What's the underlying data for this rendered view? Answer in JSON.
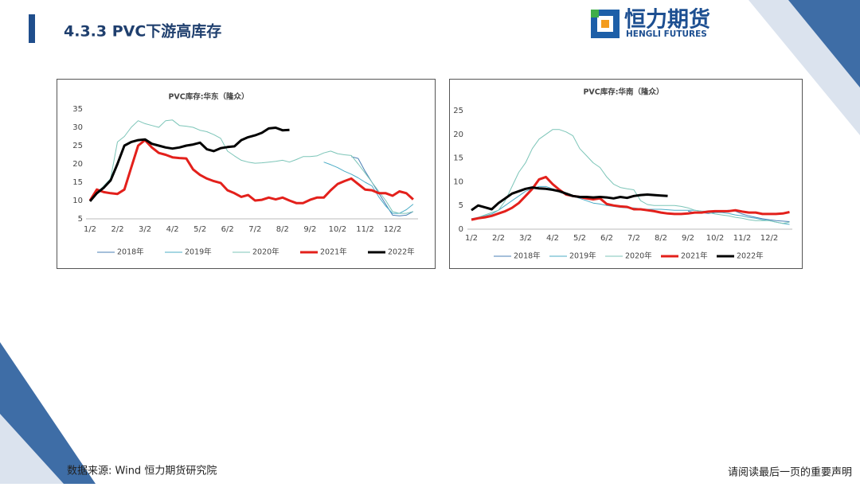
{
  "header": {
    "title": "4.3.3 PVC下游高库存"
  },
  "logo": {
    "name": "恒力期货",
    "subtitle": "HENGLI FUTURES"
  },
  "footer": {
    "source": "数据来源: Wind  恒力期货研究院",
    "disclaimer": "请阅读最后一页的重要声明"
  },
  "chart_data": [
    {
      "type": "line",
      "title": "PVC库存:华东（隆众）",
      "categories": [
        "1/2",
        null,
        null,
        null,
        "2/2",
        null,
        null,
        null,
        "3/2",
        null,
        null,
        null,
        "4/2",
        null,
        null,
        null,
        "5/2",
        null,
        null,
        null,
        "6/2",
        null,
        null,
        null,
        "7/2",
        null,
        null,
        null,
        "8/2",
        null,
        null,
        null,
        "9/2",
        null,
        null,
        null,
        "10/2",
        null,
        null,
        null,
        "11/2",
        null,
        null,
        null,
        "12/2",
        null,
        null,
        null
      ],
      "ylim": [
        5,
        35
      ],
      "yticks": [
        5,
        10,
        15,
        20,
        25,
        30,
        35
      ],
      "grid": false,
      "legend": "bottom",
      "series": [
        {
          "name": "2018年",
          "color": "#4a7fb5",
          "width": 1,
          "values": [
            null,
            null,
            null,
            null,
            null,
            null,
            null,
            null,
            null,
            null,
            null,
            null,
            null,
            null,
            null,
            null,
            null,
            null,
            null,
            null,
            null,
            null,
            null,
            null,
            null,
            null,
            null,
            null,
            null,
            null,
            null,
            null,
            null,
            null,
            null,
            null,
            null,
            null,
            22,
            21.5,
            18,
            15,
            12,
            9,
            6,
            5.8,
            6,
            7
          ]
        },
        {
          "name": "2019年",
          "color": "#4bacc6",
          "width": 1,
          "values": [
            null,
            null,
            null,
            null,
            null,
            null,
            null,
            null,
            null,
            null,
            null,
            null,
            null,
            null,
            null,
            null,
            null,
            null,
            null,
            null,
            null,
            null,
            null,
            null,
            null,
            null,
            null,
            null,
            null,
            null,
            null,
            null,
            null,
            null,
            20.5,
            19.8,
            19,
            18,
            17.2,
            16.2,
            15,
            14,
            11,
            8.5,
            6.5,
            6.5,
            7.5,
            9
          ]
        },
        {
          "name": "2020年",
          "color": "#7cc5b8",
          "width": 1,
          "values": [
            10,
            12,
            14,
            16,
            26,
            27.5,
            30,
            31.8,
            31,
            30.5,
            30,
            31.8,
            32,
            30.5,
            30.3,
            30,
            29.2,
            28.8,
            28,
            27,
            23.5,
            22.2,
            21,
            20.5,
            20.2,
            20.3,
            20.5,
            20.7,
            21,
            20.5,
            21.2,
            22,
            22,
            22.2,
            23,
            23.5,
            22.8,
            22.5,
            22.3,
            20,
            17.5,
            15,
            12.5,
            10,
            7,
            6.5,
            6.5,
            7
          ]
        },
        {
          "name": "2021年",
          "color": "#e3201b",
          "width": 3,
          "values": [
            10,
            13,
            12.3,
            12,
            11.8,
            13,
            19,
            25,
            26.5,
            24.5,
            23,
            22.5,
            21.8,
            21.6,
            21.5,
            18.5,
            17,
            16,
            15.3,
            14.8,
            12.8,
            12,
            11,
            11.5,
            10,
            10.2,
            10.8,
            10.3,
            10.8,
            10,
            9.3,
            9.3,
            10.2,
            10.8,
            10.8,
            12.8,
            14.5,
            15.3,
            16,
            14.5,
            13,
            12.8,
            12,
            12,
            11.3,
            12.5,
            12,
            10.3
          ]
        },
        {
          "name": "2022年",
          "color": "#000000",
          "width": 3,
          "values": [
            9.8,
            12,
            13.5,
            15.5,
            20,
            25,
            26,
            26.5,
            26.7,
            25.5,
            25,
            24.5,
            24.2,
            24.5,
            25,
            25.3,
            25.8,
            24,
            23.5,
            24.3,
            24.6,
            24.8,
            26.5,
            27.3,
            27.8,
            28.5,
            29.7,
            29.9,
            29.2,
            29.3,
            null,
            null,
            null,
            null,
            null,
            null,
            null,
            null,
            null,
            null,
            null,
            null,
            null,
            null,
            null,
            null,
            null,
            null
          ]
        }
      ]
    },
    {
      "type": "line",
      "title": "PVC库存:华南（隆众）",
      "categories": [
        "1/2",
        null,
        null,
        null,
        "2/2",
        null,
        null,
        null,
        "3/2",
        null,
        null,
        null,
        "4/2",
        null,
        null,
        null,
        "5/2",
        null,
        null,
        null,
        "6/2",
        null,
        null,
        null,
        "7/2",
        null,
        null,
        null,
        "8/2",
        null,
        null,
        null,
        "9/2",
        null,
        null,
        null,
        "10/2",
        null,
        null,
        null,
        "11/2",
        null,
        null,
        null,
        "12/2",
        null,
        null,
        null
      ],
      "ylim": [
        0,
        25
      ],
      "yticks": [
        0,
        5,
        10,
        15,
        20,
        25
      ],
      "grid": false,
      "legend": "bottom",
      "series": [
        {
          "name": "2018年",
          "color": "#4a7fb5",
          "width": 1,
          "values": [
            null,
            null,
            null,
            null,
            null,
            null,
            null,
            null,
            null,
            null,
            null,
            null,
            null,
            null,
            null,
            null,
            null,
            null,
            null,
            null,
            null,
            null,
            null,
            null,
            null,
            null,
            null,
            null,
            null,
            null,
            null,
            null,
            3.8,
            3.5,
            3.5,
            3.3,
            3.5,
            3.8,
            4,
            3.8,
            3.2,
            2.8,
            2.5,
            2.2,
            2,
            1.8,
            1.7,
            1.6
          ]
        },
        {
          "name": "2019年",
          "color": "#4bacc6",
          "width": 1,
          "values": [
            2.2,
            2.5,
            2.8,
            3.2,
            4,
            5,
            6,
            7,
            8,
            8.5,
            9,
            9,
            8.5,
            8,
            7.5,
            7,
            6.5,
            6,
            5.5,
            5.3,
            5,
            4.8,
            4.6,
            4.5,
            4.5,
            4.3,
            4.2,
            4.2,
            4.2,
            4.1,
            4,
            4,
            4,
            4,
            3.8,
            3.8,
            3.5,
            3.5,
            3.3,
            3,
            2.8,
            2.5,
            2.3,
            2,
            1.8,
            1.5,
            1.2,
            1
          ]
        },
        {
          "name": "2020年",
          "color": "#7cc5b8",
          "width": 1,
          "values": [
            2,
            2.5,
            3,
            3.5,
            4,
            6,
            9,
            12,
            14,
            17,
            19,
            20,
            21,
            21,
            20.5,
            19.7,
            17,
            15.5,
            14,
            13,
            11,
            9.5,
            8.8,
            8.5,
            8.3,
            6,
            5.2,
            5,
            5,
            5,
            5,
            4.8,
            4.5,
            4,
            3.8,
            3.5,
            3.2,
            3,
            2.8,
            2.5,
            2.3,
            2,
            1.8,
            1.8,
            1.8,
            1.5,
            1.2,
            1.5
          ]
        },
        {
          "name": "2021年",
          "color": "#e3201b",
          "width": 3,
          "values": [
            2,
            2.3,
            2.5,
            2.8,
            3.3,
            3.8,
            4.5,
            5.5,
            7,
            8.5,
            10.5,
            11,
            9.5,
            8.3,
            7.3,
            7,
            6.8,
            6.5,
            6.3,
            6.5,
            5.3,
            5,
            4.8,
            4.7,
            4.2,
            4.2,
            4,
            3.8,
            3.5,
            3.3,
            3.2,
            3.2,
            3.3,
            3.5,
            3.5,
            3.7,
            3.8,
            3.8,
            3.8,
            4,
            3.7,
            3.5,
            3.5,
            3.2,
            3.2,
            3.2,
            3.3,
            3.6
          ]
        },
        {
          "name": "2022年",
          "color": "#000000",
          "width": 3,
          "values": [
            4,
            5,
            4.6,
            4.2,
            5.5,
            6.5,
            7.5,
            8,
            8.5,
            8.8,
            8.6,
            8.5,
            8.3,
            8,
            7.5,
            7,
            6.8,
            6.8,
            6.7,
            6.8,
            6.7,
            6.5,
            6.8,
            6.6,
            7,
            7.2,
            7.3,
            7.2,
            7.1,
            7,
            null,
            null,
            null,
            null,
            null,
            null,
            null,
            null,
            null,
            null,
            null,
            null,
            null,
            null,
            null,
            null,
            null,
            null
          ]
        }
      ]
    }
  ]
}
